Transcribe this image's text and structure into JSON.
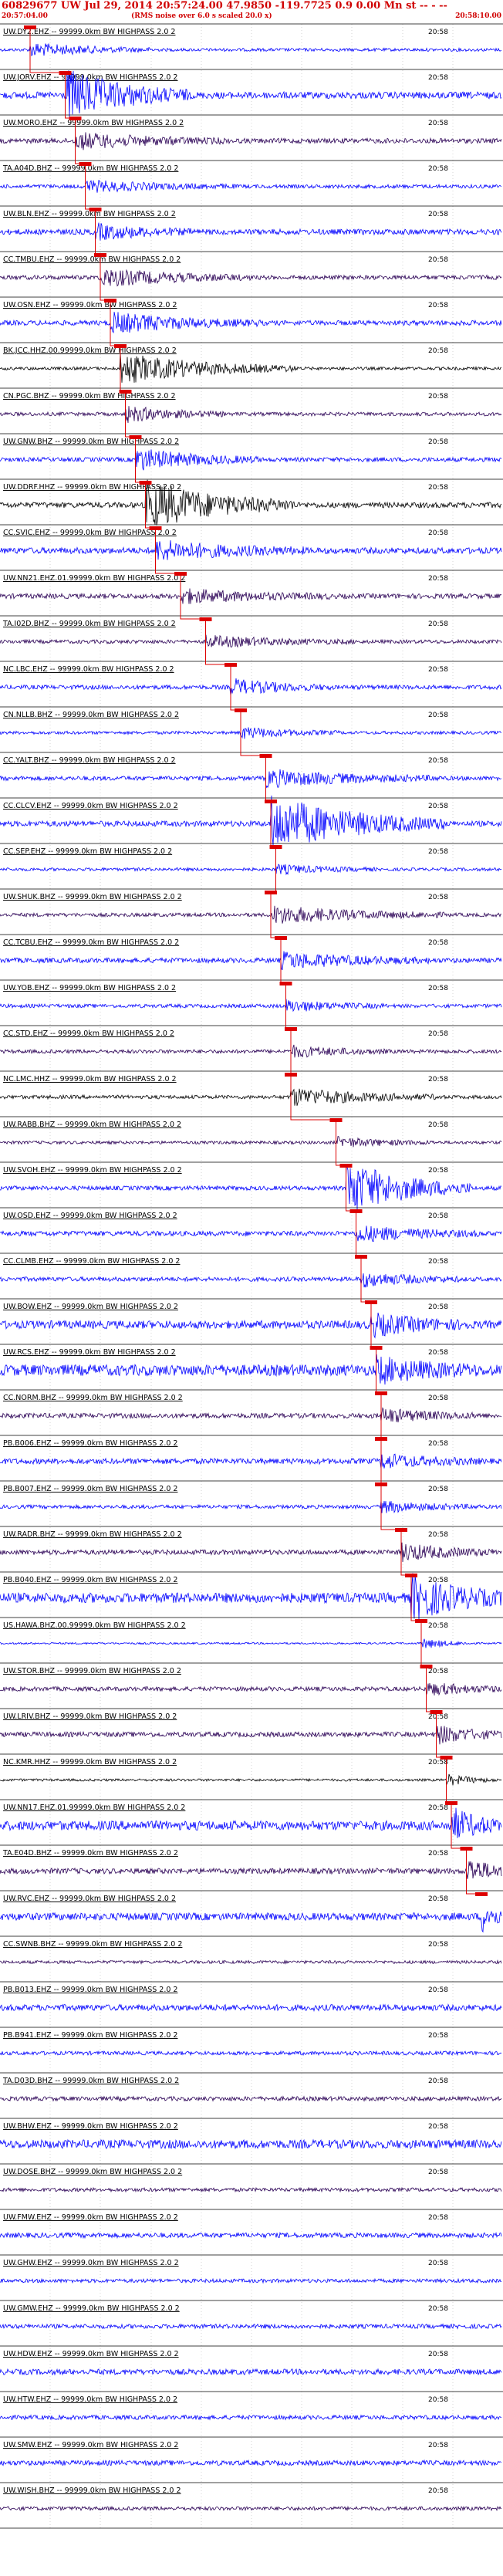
{
  "header": {
    "title": "60829677 UW Jul 29, 2014 20:57:24.00    47.9850 -119.7725   0.9 0.00 Mn st -- - --",
    "start_time": "20:57:04.00",
    "note": "(RMS noise over 6.0 s scaled 20.0 x)",
    "end_time": "20:58:10.00"
  },
  "chart_data": {
    "type": "line",
    "time_range": [
      "20:57:04.00",
      "20:58:10.00"
    ],
    "grid": true,
    "tick_label": "20:58",
    "colors": {
      "blue": "#0000ff",
      "purple": "#2a0055",
      "black": "#000000",
      "pick": "#dd0000"
    },
    "traces": [
      {
        "label": "UW.DY2.EHZ -- 99999.0km BW  HIGHPASS  2.0  2",
        "color": "blue",
        "amp": 0.5,
        "pick": 0.06,
        "burst": 0.25,
        "burstAmp": 1.2
      },
      {
        "label": "UW.JORV.EHZ -- 99999.0km BW  HIGHPASS  2.0  2",
        "color": "blue",
        "amp": 1.1,
        "pick": 0.13,
        "burst": 0.25,
        "burstAmp": 4.6
      },
      {
        "label": "UW.MORO.EHZ -- 99999.0km BW  HIGHPASS  2.0  2",
        "color": "purple",
        "amp": 0.8,
        "pick": 0.15,
        "burst": 0.3,
        "burstAmp": 1.4
      },
      {
        "label": "TA.A04D.BHZ -- 99999.0km BW  HIGHPASS  2.0  2",
        "color": "blue",
        "amp": 0.6,
        "pick": 0.17,
        "burst": 0.3,
        "burstAmp": 1.0
      },
      {
        "label": "UW.BLN.EHZ -- 99999.0km BW  HIGHPASS  2.0  2",
        "color": "blue",
        "amp": 0.9,
        "pick": 0.19,
        "burst": 0.2,
        "burstAmp": 1.3
      },
      {
        "label": "CC.TMBU.EHZ -- 99999.0km BW  HIGHPASS  2.0  2",
        "color": "purple",
        "amp": 0.7,
        "pick": 0.2,
        "burst": 0.3,
        "burstAmp": 1.6
      },
      {
        "label": "UW.OSN.EHZ -- 99999.0km BW  HIGHPASS  2.0  2",
        "color": "blue",
        "amp": 0.8,
        "pick": 0.22,
        "burst": 0.3,
        "burstAmp": 1.8
      },
      {
        "label": "BK.JCC.HHZ.00.99999.0km BW  HIGHPASS  2.0  2",
        "color": "black",
        "amp": 0.5,
        "pick": 0.24,
        "burst": 0.35,
        "burstAmp": 2.8
      },
      {
        "label": "CN.PGC.BHZ -- 99999.0km BW  HIGHPASS  2.0  2",
        "color": "purple",
        "amp": 0.6,
        "pick": 0.25,
        "burst": 0.2,
        "burstAmp": 1.4
      },
      {
        "label": "UW.GNW.BHZ -- 99999.0km BW  HIGHPASS  2.0  2",
        "color": "blue",
        "amp": 0.7,
        "pick": 0.27,
        "burst": 0.25,
        "burstAmp": 2.0
      },
      {
        "label": "UW.DDRF.HHZ -- 99999.0km BW  HIGHPASS  2.0  2",
        "color": "black",
        "amp": 0.9,
        "pick": 0.29,
        "burst": 0.3,
        "burstAmp": 4.4
      },
      {
        "label": "CC.SVIC.EHZ -- 99999.0km BW  HIGHPASS  2.0  2",
        "color": "blue",
        "amp": 1.0,
        "pick": 0.31,
        "burst": 0.3,
        "burstAmp": 1.7
      },
      {
        "label": "UW.NN21.EHZ.01.99999.0km BW  HIGHPASS  2.0  2",
        "color": "purple",
        "amp": 0.8,
        "pick": 0.36,
        "burst": 0.3,
        "burstAmp": 1.2
      },
      {
        "label": "TA.I02D.BHZ -- 99999.0km BW  HIGHPASS  2.0  2",
        "color": "purple",
        "amp": 0.6,
        "pick": 0.41,
        "burst": 0.3,
        "burstAmp": 1.0
      },
      {
        "label": "NC.LBC.EHZ -- 99999.0km BW  HIGHPASS  2.0  2",
        "color": "blue",
        "amp": 0.7,
        "pick": 0.46,
        "burst": 0.2,
        "burstAmp": 1.4
      },
      {
        "label": "CN.NLLB.BHZ -- 99999.0km BW  HIGHPASS  2.0  2",
        "color": "blue",
        "amp": 0.5,
        "pick": 0.48,
        "burst": 0.2,
        "burstAmp": 1.0
      },
      {
        "label": "CC.YALT.BHZ -- 99999.0km BW  HIGHPASS  2.0  2",
        "color": "blue",
        "amp": 0.7,
        "pick": 0.53,
        "burst": 0.35,
        "burstAmp": 1.5
      },
      {
        "label": "CC.CLCV.EHZ -- 99999.0km BW  HIGHPASS  2.0  2",
        "color": "blue",
        "amp": 0.9,
        "pick": 0.54,
        "burst": 0.35,
        "burstAmp": 5.0
      },
      {
        "label": "CC.SEP.EHZ -- 99999.0km BW  HIGHPASS  2.0  2",
        "color": "blue",
        "amp": 0.5,
        "pick": 0.55,
        "burst": 0.2,
        "burstAmp": 0.8
      },
      {
        "label": "UW.SHUK.BHZ -- 99999.0km BW  HIGHPASS  2.0  2",
        "color": "purple",
        "amp": 0.6,
        "pick": 0.54,
        "burst": 0.35,
        "burstAmp": 1.6
      },
      {
        "label": "CC.TCBU.EHZ -- 99999.0km BW  HIGHPASS  2.0  2",
        "color": "blue",
        "amp": 0.8,
        "pick": 0.56,
        "burst": 0.3,
        "burstAmp": 1.4
      },
      {
        "label": "UW.YOB.EHZ -- 99999.0km BW  HIGHPASS  2.0  2",
        "color": "blue",
        "amp": 0.6,
        "pick": 0.57,
        "burst": 0.2,
        "burstAmp": 1.0
      },
      {
        "label": "CC.STD.EHZ -- 99999.0km BW  HIGHPASS  2.0  2",
        "color": "purple",
        "amp": 0.6,
        "pick": 0.58,
        "burst": 0.2,
        "burstAmp": 1.0
      },
      {
        "label": "NC.LMC.HHZ -- 99999.0km BW  HIGHPASS  2.0  2",
        "color": "black",
        "amp": 0.6,
        "pick": 0.58,
        "burst": 0.3,
        "burstAmp": 1.6
      },
      {
        "label": "UW.RABB.BHZ -- 99999.0km BW  HIGHPASS  2.0  2",
        "color": "purple",
        "amp": 0.5,
        "pick": 0.67,
        "burst": 0.2,
        "burstAmp": 0.9
      },
      {
        "label": "UW.SVOH.EHZ -- 99999.0km BW  HIGHPASS  2.0  2",
        "color": "blue",
        "amp": 0.7,
        "pick": 0.69,
        "burst": 0.25,
        "burstAmp": 5.0
      },
      {
        "label": "UW.OSD.EHZ -- 99999.0km BW  HIGHPASS  2.0  2",
        "color": "blue",
        "amp": 0.8,
        "pick": 0.71,
        "burst": 0.25,
        "burstAmp": 1.4
      },
      {
        "label": "CC.CLMB.EHZ -- 99999.0km BW  HIGHPASS  2.0  2",
        "color": "blue",
        "amp": 0.7,
        "pick": 0.72,
        "burst": 0.2,
        "burstAmp": 1.3
      },
      {
        "label": "UW.BOW.EHZ -- 99999.0km BW  HIGHPASS  2.0  2",
        "color": "blue",
        "amp": 1.3,
        "pick": 0.74,
        "burst": 0.2,
        "burstAmp": 1.8
      },
      {
        "label": "UW.RCS.EHZ -- 99999.0km BW  HIGHPASS  2.0  2",
        "color": "blue",
        "amp": 1.8,
        "pick": 0.75,
        "burst": 0.2,
        "burstAmp": 2.0
      },
      {
        "label": "CC.NORM.BHZ -- 99999.0km BW  HIGHPASS  2.0  2",
        "color": "purple",
        "amp": 0.8,
        "pick": 0.76,
        "burst": 0.2,
        "burstAmp": 1.2
      },
      {
        "label": "PB.B006.EHZ -- 99999.0km BW  HIGHPASS  2.0  2",
        "color": "blue",
        "amp": 0.9,
        "pick": 0.76,
        "burst": 0.2,
        "burstAmp": 1.2
      },
      {
        "label": "PB.B007.EHZ -- 99999.0km BW  HIGHPASS  2.0  2",
        "color": "blue",
        "amp": 0.6,
        "pick": 0.76,
        "burst": 0.2,
        "burstAmp": 1.0
      },
      {
        "label": "UW.RADR.BHZ -- 99999.0km BW  HIGHPASS  2.0  2",
        "color": "purple",
        "amp": 0.8,
        "pick": 0.8,
        "burst": 0.2,
        "burstAmp": 1.5
      },
      {
        "label": "PB.B040.EHZ -- 99999.0km BW  HIGHPASS  2.0  2",
        "color": "blue",
        "amp": 1.6,
        "pick": 0.82,
        "burst": 0.2,
        "burstAmp": 3.8
      },
      {
        "label": "US.HAWA.BHZ.00.99999.0km BW  HIGHPASS  2.0  2",
        "color": "blue",
        "amp": 0.3,
        "pick": 0.84,
        "burst": 0.1,
        "burstAmp": 1.0
      },
      {
        "label": "UW.STOR.BHZ -- 99999.0km BW  HIGHPASS  2.0  2",
        "color": "purple",
        "amp": 0.7,
        "pick": 0.85,
        "burst": 0.2,
        "burstAmp": 1.0
      },
      {
        "label": "UW.LRIV.BHZ -- 99999.0km BW  HIGHPASS  2.0  2",
        "color": "purple",
        "amp": 0.8,
        "pick": 0.87,
        "burst": 0.15,
        "burstAmp": 1.6
      },
      {
        "label": "NC.KMR.HHZ -- 99999.0km BW  HIGHPASS  2.0  2",
        "color": "black",
        "amp": 0.4,
        "pick": 0.89,
        "burst": 0.1,
        "burstAmp": 1.0
      },
      {
        "label": "UW.NN17.EHZ.01.99999.0km BW  HIGHPASS  2.0  2",
        "color": "blue",
        "amp": 1.5,
        "pick": 0.9,
        "burst": 0.1,
        "burstAmp": 3.0
      },
      {
        "label": "TA.E04D.BHZ -- 99999.0km BW  HIGHPASS  2.0  2",
        "color": "purple",
        "amp": 0.9,
        "pick": 0.93,
        "burst": 0.1,
        "burstAmp": 2.4
      },
      {
        "label": "UW.RVC.EHZ -- 99999.0km BW  HIGHPASS  2.0  2",
        "color": "blue",
        "amp": 1.2,
        "pick": 0.96,
        "burst": 0.06,
        "burstAmp": 2.6
      },
      {
        "label": "CC.SWNB.BHZ -- 99999.0km BW  HIGHPASS  2.0  2",
        "color": "purple",
        "amp": 0.5,
        "pick": null,
        "burst": 0,
        "burstAmp": 1.0
      },
      {
        "label": "PB.B013.EHZ -- 99999.0km BW  HIGHPASS  2.0  2",
        "color": "blue",
        "amp": 1.0,
        "pick": null,
        "burst": 0,
        "burstAmp": 1.0
      },
      {
        "label": "PB.B941.EHZ -- 99999.0km BW  HIGHPASS  2.0  2",
        "color": "blue",
        "amp": 0.6,
        "pick": null,
        "burst": 0,
        "burstAmp": 1.0
      },
      {
        "label": "TA.D03D.BHZ -- 99999.0km BW  HIGHPASS  2.0  2",
        "color": "purple",
        "amp": 0.7,
        "pick": null,
        "burst": 0,
        "burstAmp": 1.0
      },
      {
        "label": "UW.BHW.EHZ -- 99999.0km BW  HIGHPASS  2.0  2",
        "color": "blue",
        "amp": 1.4,
        "pick": null,
        "burst": 0,
        "burstAmp": 1.0
      },
      {
        "label": "UW.DOSE.BHZ -- 99999.0km BW  HIGHPASS  2.0  2",
        "color": "purple",
        "amp": 0.6,
        "pick": null,
        "burst": 0,
        "burstAmp": 1.0
      },
      {
        "label": "UW.FMW.EHZ -- 99999.0km BW  HIGHPASS  2.0  2",
        "color": "blue",
        "amp": 0.8,
        "pick": null,
        "burst": 0,
        "burstAmp": 1.0
      },
      {
        "label": "UW.GHW.EHZ -- 99999.0km BW  HIGHPASS  2.0  2",
        "color": "blue",
        "amp": 0.6,
        "pick": null,
        "burst": 0,
        "burstAmp": 1.0
      },
      {
        "label": "UW.GMW.EHZ -- 99999.0km BW  HIGHPASS  2.0  2",
        "color": "blue",
        "amp": 0.7,
        "pick": null,
        "burst": 0,
        "burstAmp": 1.0
      },
      {
        "label": "UW.HDW.EHZ -- 99999.0km BW  HIGHPASS  2.0  2",
        "color": "blue",
        "amp": 0.9,
        "pick": null,
        "burst": 0,
        "burstAmp": 1.0
      },
      {
        "label": "UW.HTW.EHZ -- 99999.0km BW  HIGHPASS  2.0  2",
        "color": "blue",
        "amp": 0.7,
        "pick": null,
        "burst": 0,
        "burstAmp": 1.0
      },
      {
        "label": "UW.SMW.EHZ -- 99999.0km BW  HIGHPASS  2.0  2",
        "color": "blue",
        "amp": 0.8,
        "pick": null,
        "burst": 0,
        "burstAmp": 1.0
      },
      {
        "label": "UW.WISH.BHZ -- 99999.0km BW  HIGHPASS  2.0  2",
        "color": "purple",
        "amp": 0.6,
        "pick": null,
        "burst": 0,
        "burstAmp": 1.0
      }
    ]
  }
}
